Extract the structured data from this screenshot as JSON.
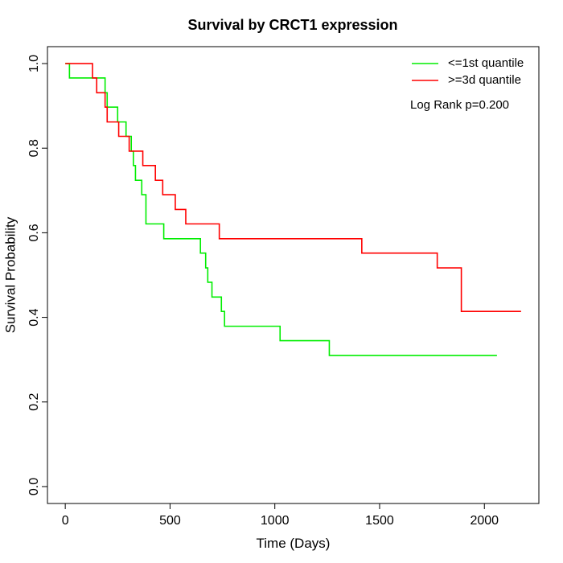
{
  "chart_data": {
    "type": "line",
    "title": "Survival by CRCT1 expression",
    "xlabel": "Time (Days)",
    "ylabel": "Survival Probability",
    "xlim": [
      -85,
      2260
    ],
    "ylim": [
      -0.04,
      1.04
    ],
    "xticks": [
      0,
      500,
      1000,
      1500,
      2000
    ],
    "yticks": [
      0.0,
      0.2,
      0.4,
      0.6,
      0.8,
      1.0
    ],
    "xtick_labels": [
      "0",
      "500",
      "1000",
      "1500",
      "2000"
    ],
    "ytick_labels": [
      "0.0",
      "0.2",
      "0.4",
      "0.6",
      "0.8",
      "1.0"
    ],
    "grid": false,
    "legend_position": "top-right",
    "annotation": "Log Rank p=0.200",
    "series": [
      {
        "name": "<=1st quantile",
        "color": "#00ee00",
        "step": true,
        "x": [
          0,
          20,
          190,
          200,
          250,
          290,
          315,
          325,
          335,
          365,
          385,
          470,
          645,
          670,
          680,
          690,
          700,
          745,
          760,
          1025,
          1260,
          2060
        ],
        "y": [
          1.0,
          0.966,
          0.931,
          0.897,
          0.862,
          0.828,
          0.793,
          0.759,
          0.724,
          0.69,
          0.621,
          0.586,
          0.552,
          0.517,
          0.483,
          0.483,
          0.448,
          0.414,
          0.379,
          0.345,
          0.31,
          0.31
        ]
      },
      {
        "name": ">=3d quantile",
        "color": "#ff0000",
        "step": true,
        "x": [
          0,
          130,
          150,
          190,
          200,
          255,
          305,
          370,
          430,
          465,
          525,
          575,
          735,
          1415,
          1775,
          1890,
          2175
        ],
        "y": [
          1.0,
          0.966,
          0.931,
          0.897,
          0.862,
          0.828,
          0.793,
          0.759,
          0.724,
          0.69,
          0.655,
          0.621,
          0.586,
          0.552,
          0.517,
          0.414,
          0.414
        ]
      }
    ]
  }
}
